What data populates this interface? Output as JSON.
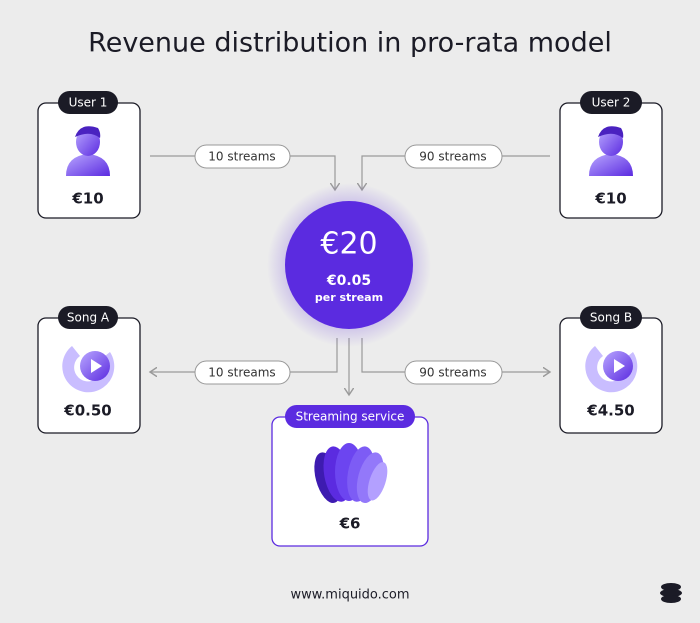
{
  "title": "Revenue distribution in pro-rata model",
  "nodes": [
    {
      "label": "User 1",
      "amount": "€10"
    },
    {
      "label": "User 2",
      "amount": "€10"
    },
    {
      "label": "Song A",
      "amount": "€0.50"
    },
    {
      "label": "Song B",
      "amount": "€4.50"
    },
    {
      "label": "Streaming service",
      "amount": "€6"
    }
  ],
  "center": {
    "amount": "€20",
    "rate": "€0.05",
    "rate_label": "per stream"
  },
  "edges": [
    {
      "label": "10 streams"
    },
    {
      "label": "90 streams"
    },
    {
      "label": "10 streams"
    },
    {
      "label": "90 streams"
    }
  ],
  "footer": "www.miquido.com"
}
